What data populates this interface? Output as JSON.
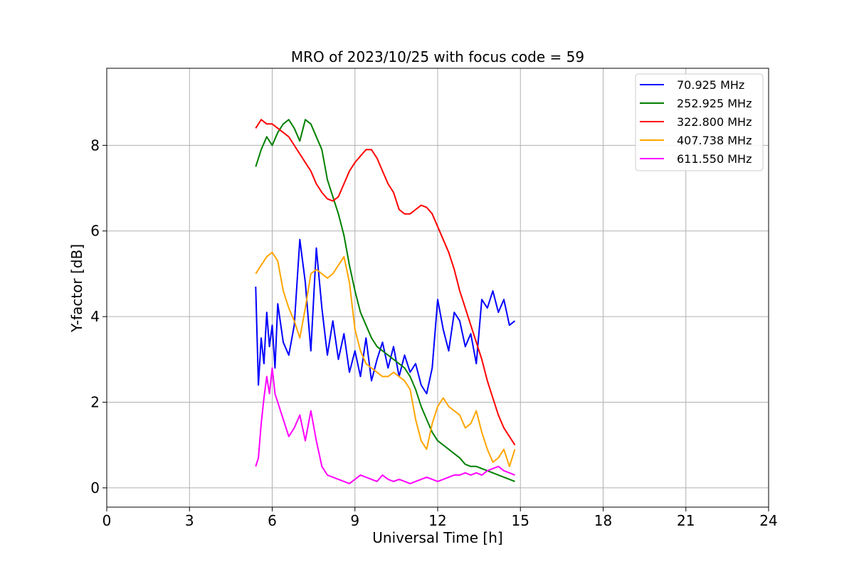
{
  "chart_data": {
    "type": "line",
    "title": "MRO of 2023/10/25 with focus code = 59",
    "xlabel": "Universal Time [h]",
    "ylabel": "Y-factor [dB]",
    "xlim": [
      0,
      24
    ],
    "ylim": [
      -0.45,
      9.8
    ],
    "xticks": [
      0,
      3,
      6,
      9,
      12,
      15,
      18,
      21,
      24
    ],
    "yticks": [
      0,
      2,
      4,
      6,
      8
    ],
    "grid": true,
    "legend_position": "top-right",
    "series": [
      {
        "name": "70.925 MHz",
        "color": "#0000ff",
        "x": [
          5.4,
          5.5,
          5.6,
          5.7,
          5.8,
          5.9,
          6.0,
          6.1,
          6.2,
          6.4,
          6.6,
          6.8,
          7.0,
          7.2,
          7.4,
          7.6,
          7.8,
          8.0,
          8.2,
          8.4,
          8.6,
          8.8,
          9.0,
          9.2,
          9.4,
          9.6,
          9.8,
          10.0,
          10.2,
          10.4,
          10.6,
          10.8,
          11.0,
          11.2,
          11.4,
          11.6,
          11.8,
          12.0,
          12.2,
          12.4,
          12.6,
          12.8,
          13.0,
          13.2,
          13.4,
          13.6,
          13.8,
          14.0,
          14.2,
          14.4,
          14.6,
          14.8
        ],
        "y": [
          4.7,
          2.4,
          3.5,
          2.9,
          4.1,
          3.3,
          3.8,
          2.8,
          4.3,
          3.4,
          3.1,
          3.8,
          5.8,
          4.8,
          3.2,
          5.6,
          4.2,
          3.1,
          3.9,
          3.0,
          3.6,
          2.7,
          3.2,
          2.6,
          3.5,
          2.5,
          3.0,
          3.4,
          2.8,
          3.3,
          2.6,
          3.1,
          2.7,
          2.9,
          2.4,
          2.2,
          2.8,
          4.4,
          3.7,
          3.2,
          4.1,
          3.9,
          3.3,
          3.6,
          2.9,
          4.4,
          4.2,
          4.6,
          4.1,
          4.4,
          3.8,
          3.9
        ]
      },
      {
        "name": "252.925 MHz",
        "color": "#008000",
        "x": [
          5.4,
          5.6,
          5.8,
          6.0,
          6.2,
          6.4,
          6.6,
          6.8,
          7.0,
          7.2,
          7.4,
          7.6,
          7.8,
          8.0,
          8.2,
          8.4,
          8.6,
          8.8,
          9.0,
          9.2,
          9.4,
          9.6,
          9.8,
          10.0,
          10.2,
          10.4,
          10.6,
          10.8,
          11.0,
          11.2,
          11.4,
          11.6,
          11.8,
          12.0,
          12.2,
          12.4,
          12.6,
          12.8,
          13.0,
          13.2,
          13.4,
          13.6,
          13.8,
          14.0,
          14.2,
          14.4,
          14.6,
          14.8
        ],
        "y": [
          7.5,
          7.9,
          8.2,
          8.0,
          8.3,
          8.5,
          8.6,
          8.4,
          8.1,
          8.6,
          8.5,
          8.2,
          7.9,
          7.2,
          6.8,
          6.4,
          5.9,
          5.2,
          4.6,
          4.1,
          3.8,
          3.5,
          3.3,
          3.2,
          3.1,
          3.0,
          2.9,
          2.8,
          2.6,
          2.3,
          1.9,
          1.6,
          1.3,
          1.1,
          1.0,
          0.9,
          0.8,
          0.7,
          0.55,
          0.5,
          0.5,
          0.45,
          0.4,
          0.35,
          0.3,
          0.25,
          0.2,
          0.15
        ]
      },
      {
        "name": "322.800 MHz",
        "color": "#ff0000",
        "x": [
          5.4,
          5.6,
          5.8,
          6.0,
          6.2,
          6.4,
          6.6,
          6.8,
          7.0,
          7.2,
          7.4,
          7.6,
          7.8,
          8.0,
          8.2,
          8.4,
          8.6,
          8.8,
          9.0,
          9.2,
          9.4,
          9.6,
          9.8,
          10.0,
          10.2,
          10.4,
          10.6,
          10.8,
          11.0,
          11.2,
          11.4,
          11.6,
          11.8,
          12.0,
          12.2,
          12.4,
          12.6,
          12.8,
          13.0,
          13.2,
          13.4,
          13.6,
          13.8,
          14.0,
          14.2,
          14.4,
          14.6,
          14.8
        ],
        "y": [
          8.4,
          8.6,
          8.5,
          8.5,
          8.4,
          8.3,
          8.2,
          8.0,
          7.8,
          7.6,
          7.4,
          7.1,
          6.9,
          6.75,
          6.7,
          6.8,
          7.1,
          7.4,
          7.6,
          7.75,
          7.9,
          7.9,
          7.7,
          7.4,
          7.1,
          6.9,
          6.5,
          6.4,
          6.4,
          6.5,
          6.6,
          6.55,
          6.4,
          6.1,
          5.8,
          5.5,
          5.1,
          4.6,
          4.2,
          3.8,
          3.4,
          3.0,
          2.5,
          2.1,
          1.7,
          1.4,
          1.2,
          1.0
        ]
      },
      {
        "name": "407.738 MHz",
        "color": "#ffa500",
        "x": [
          5.4,
          5.6,
          5.8,
          6.0,
          6.2,
          6.4,
          6.6,
          6.8,
          7.0,
          7.2,
          7.4,
          7.6,
          7.8,
          8.0,
          8.2,
          8.4,
          8.6,
          8.8,
          9.0,
          9.2,
          9.4,
          9.6,
          9.8,
          10.0,
          10.2,
          10.4,
          10.6,
          10.8,
          11.0,
          11.2,
          11.4,
          11.6,
          11.8,
          12.0,
          12.2,
          12.4,
          12.6,
          12.8,
          13.0,
          13.2,
          13.4,
          13.6,
          13.8,
          14.0,
          14.2,
          14.4,
          14.6,
          14.8
        ],
        "y": [
          5.0,
          5.2,
          5.4,
          5.5,
          5.3,
          4.6,
          4.2,
          3.9,
          3.5,
          4.2,
          5.0,
          5.1,
          5.0,
          4.9,
          5.0,
          5.2,
          5.4,
          4.8,
          3.7,
          3.2,
          2.9,
          2.8,
          2.7,
          2.6,
          2.6,
          2.7,
          2.6,
          2.5,
          2.3,
          1.6,
          1.1,
          0.9,
          1.5,
          1.9,
          2.1,
          1.9,
          1.8,
          1.7,
          1.4,
          1.5,
          1.8,
          1.3,
          0.9,
          0.6,
          0.7,
          0.9,
          0.5,
          0.9
        ]
      },
      {
        "name": "611.550 MHz",
        "color": "#ff00ff",
        "x": [
          5.4,
          5.5,
          5.6,
          5.7,
          5.8,
          5.9,
          6.0,
          6.1,
          6.2,
          6.4,
          6.6,
          6.8,
          7.0,
          7.2,
          7.4,
          7.6,
          7.8,
          8.0,
          8.2,
          8.4,
          8.6,
          8.8,
          9.0,
          9.2,
          9.4,
          9.6,
          9.8,
          10.0,
          10.2,
          10.4,
          10.6,
          10.8,
          11.0,
          11.2,
          11.4,
          11.6,
          11.8,
          12.0,
          12.2,
          12.4,
          12.6,
          12.8,
          13.0,
          13.2,
          13.4,
          13.6,
          13.8,
          14.0,
          14.2,
          14.4,
          14.6,
          14.8
        ],
        "y": [
          0.5,
          0.7,
          1.5,
          2.1,
          2.6,
          2.2,
          2.8,
          2.2,
          2.0,
          1.6,
          1.2,
          1.4,
          1.7,
          1.1,
          1.8,
          1.1,
          0.5,
          0.3,
          0.25,
          0.2,
          0.15,
          0.1,
          0.2,
          0.3,
          0.25,
          0.2,
          0.15,
          0.3,
          0.2,
          0.15,
          0.2,
          0.15,
          0.1,
          0.15,
          0.2,
          0.25,
          0.2,
          0.15,
          0.2,
          0.25,
          0.3,
          0.3,
          0.35,
          0.3,
          0.35,
          0.3,
          0.4,
          0.45,
          0.5,
          0.4,
          0.35,
          0.3
        ]
      }
    ]
  }
}
